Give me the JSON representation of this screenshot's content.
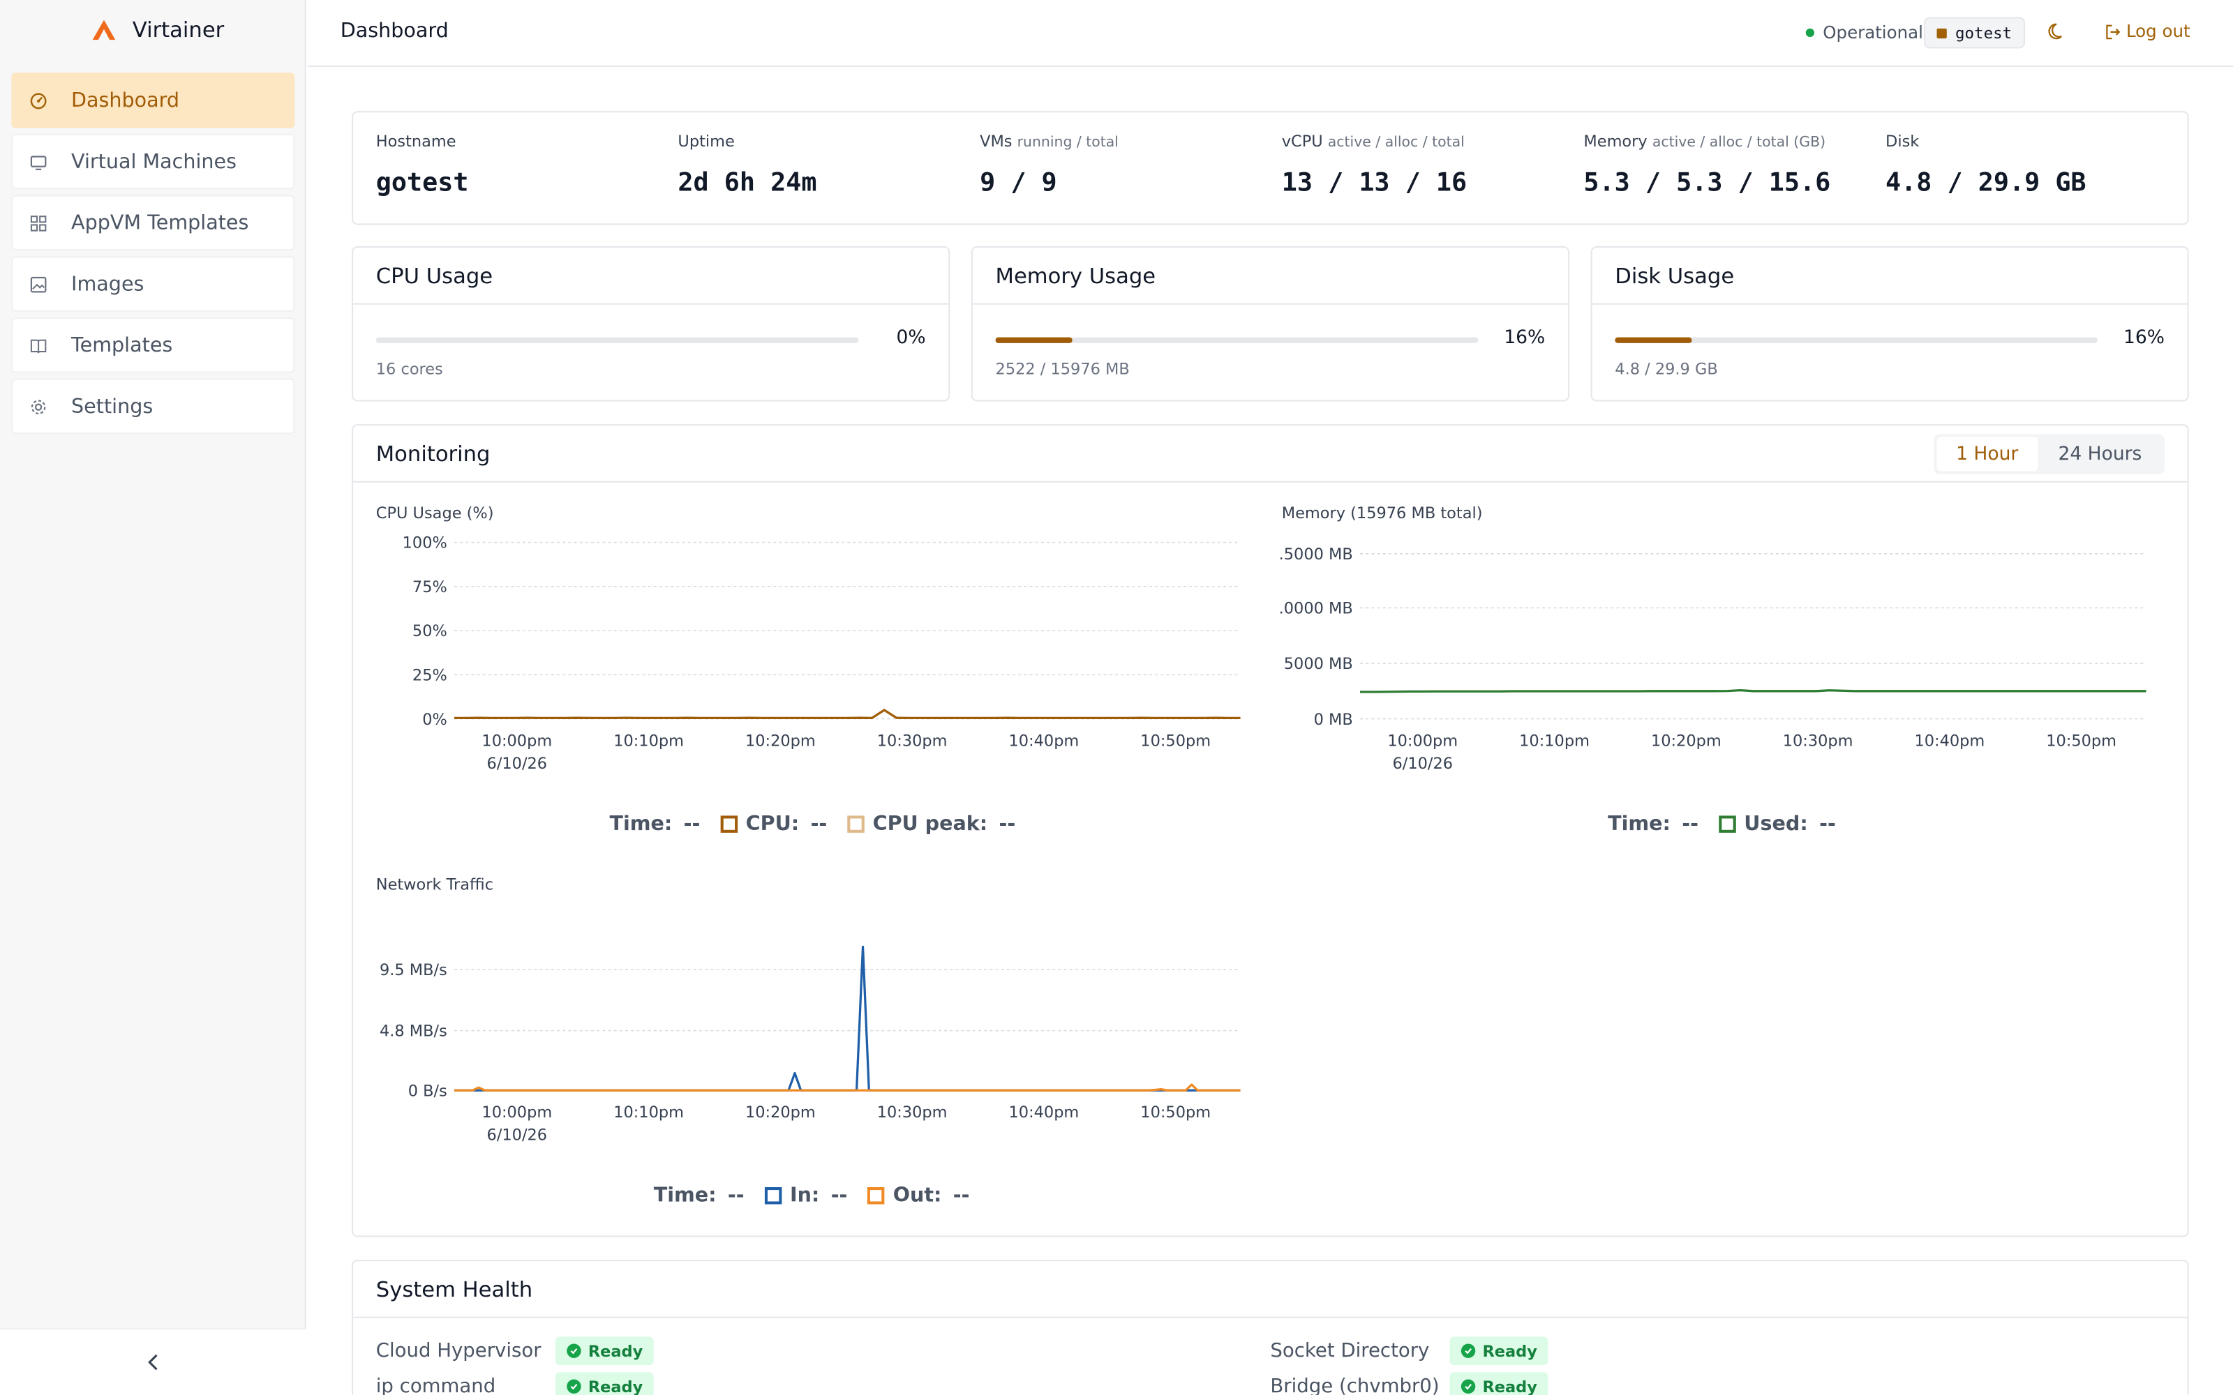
{
  "app": {
    "name": "Virtainer",
    "accent": "#a15c07"
  },
  "sidebar": {
    "items": [
      {
        "label": "Dashboard",
        "icon": "dashboard-icon",
        "active": true
      },
      {
        "label": "Virtual Machines",
        "icon": "monitor-icon",
        "active": false
      },
      {
        "label": "AppVM Templates",
        "icon": "grid-icon",
        "active": false
      },
      {
        "label": "Images",
        "icon": "image-icon",
        "active": false
      },
      {
        "label": "Templates",
        "icon": "book-icon",
        "active": false
      },
      {
        "label": "Settings",
        "icon": "gear-icon",
        "active": false
      }
    ]
  },
  "header": {
    "title": "Dashboard",
    "status": "Operational",
    "host": "gotest",
    "logout": "Log out"
  },
  "stats": [
    {
      "label": "Hostname",
      "sub": "",
      "value": "gotest"
    },
    {
      "label": "Uptime",
      "sub": "",
      "value": "2d 6h 24m"
    },
    {
      "label": "VMs",
      "sub": "running / total",
      "value": "9 / 9"
    },
    {
      "label": "vCPU",
      "sub": "active / alloc / total",
      "value": "13 / 13 / 16"
    },
    {
      "label": "Memory",
      "sub": "active / alloc / total (GB)",
      "value": "5.3 / 5.3 / 15.6"
    },
    {
      "label": "Disk",
      "sub": "",
      "value": "4.8 / 29.9 GB"
    }
  ],
  "usage": [
    {
      "title": "CPU Usage",
      "percent": "0%",
      "fraction": 0.0,
      "detail": "16 cores"
    },
    {
      "title": "Memory Usage",
      "percent": "16%",
      "fraction": 0.16,
      "detail": "2522 / 15976 MB"
    },
    {
      "title": "Disk Usage",
      "percent": "16%",
      "fraction": 0.16,
      "detail": "4.8 / 29.9 GB"
    }
  ],
  "monitoring": {
    "title": "Monitoring",
    "ranges": [
      "1 Hour",
      "24 Hours"
    ],
    "active_range": "1 Hour"
  },
  "chart_data": [
    {
      "type": "line",
      "title": "CPU Usage (%)",
      "yticks": [
        "100%",
        "75%",
        "50%",
        "25%",
        "0%"
      ],
      "ylim": [
        0,
        100
      ],
      "xticks": [
        "10:00pm",
        "10:10pm",
        "10:20pm",
        "10:30pm",
        "10:40pm",
        "10:50pm"
      ],
      "xdate": "6/10/26",
      "grid": true,
      "series": [
        {
          "name": "CPU",
          "color": "#a15c07",
          "values": [
            0.5,
            0.5,
            0.6,
            0.5,
            0.5,
            0.5,
            0.6,
            0.5,
            0.5,
            0.5,
            0.6,
            0.5,
            0.5,
            0.5,
            0.6,
            0.5,
            0.5,
            0.5,
            0.5,
            0.6,
            0.5,
            0.5,
            0.5,
            0.5,
            0.6,
            0.5,
            0.5,
            0.5,
            0.5,
            0.5,
            0.5,
            0.5,
            0.5,
            0.6,
            0.5,
            5,
            0.6,
            0.5,
            0.5,
            0.5,
            0.5,
            0.5,
            0.5,
            0.5,
            0.5,
            0.6,
            0.5,
            0.5,
            0.5,
            0.5,
            0.5,
            0.5,
            0.5,
            0.5,
            0.5,
            0.5,
            0.6,
            0.5,
            0.5,
            0.5,
            0.5,
            0.5,
            0.6,
            0.5,
            0.5
          ]
        },
        {
          "name": "CPU peak",
          "color": "#e0b98a",
          "values": []
        }
      ],
      "legend": [
        {
          "label": "Time:",
          "value": "--"
        },
        {
          "label": "CPU:",
          "value": "--",
          "color": "#a15c07"
        },
        {
          "label": "CPU peak:",
          "value": "--",
          "color": "#e0b98a"
        }
      ]
    },
    {
      "type": "line",
      "title": "Memory (15976 MB total)",
      "yticks": [
        ".5000 MB",
        ".0000 MB",
        "5000 MB",
        "0 MB"
      ],
      "ylim": [
        0,
        15000
      ],
      "xticks": [
        "10:00pm",
        "10:10pm",
        "10:20pm",
        "10:30pm",
        "10:40pm",
        "10:50pm"
      ],
      "xdate": "6/10/26",
      "grid": true,
      "series": [
        {
          "name": "Used",
          "color": "#2e7d32",
          "values": [
            2450,
            2450,
            2460,
            2470,
            2480,
            2480,
            2490,
            2490,
            2500,
            2500,
            2500,
            2500,
            2510,
            2510,
            2510,
            2510,
            2510,
            2510,
            2510,
            2510,
            2510,
            2510,
            2510,
            2520,
            2520,
            2520,
            2520,
            2520,
            2520,
            2530,
            2600,
            2520,
            2520,
            2520,
            2520,
            2520,
            2520,
            2590,
            2560,
            2520,
            2520,
            2520,
            2520,
            2520,
            2520,
            2520,
            2520,
            2520,
            2520,
            2520,
            2520,
            2520,
            2520,
            2520,
            2520,
            2520,
            2520,
            2520,
            2520,
            2520,
            2520,
            2520,
            2520
          ]
        }
      ],
      "legend": [
        {
          "label": "Time:",
          "value": "--"
        },
        {
          "label": "Used:",
          "value": "--",
          "color": "#2e7d32"
        }
      ]
    },
    {
      "type": "line",
      "title": "Network Traffic",
      "yticks": [
        "9.5 MB/s",
        "4.8 MB/s",
        "0 B/s"
      ],
      "ylim": [
        0,
        14
      ],
      "xticks": [
        "10:00pm",
        "10:10pm",
        "10:20pm",
        "10:30pm",
        "10:40pm",
        "10:50pm"
      ],
      "xdate": "6/10/26",
      "grid": true,
      "series": [
        {
          "name": "In",
          "color": "#1f5fa8",
          "values": [
            0,
            0,
            0,
            0,
            0,
            0,
            0,
            0,
            0,
            0,
            0,
            0,
            0,
            0,
            0,
            0,
            0,
            0,
            0,
            0,
            0,
            0,
            0,
            0,
            0,
            0,
            0,
            0,
            0,
            0,
            0,
            0,
            0,
            0,
            0,
            0,
            0,
            0,
            0,
            0,
            0,
            0,
            0,
            0,
            0,
            0,
            0,
            0,
            0,
            0,
            0,
            0,
            0,
            0,
            0,
            1.5,
            0,
            0,
            0,
            0,
            0,
            0,
            0,
            0,
            0,
            0,
            12.5,
            0,
            0,
            0,
            0,
            0,
            0,
            0,
            0,
            0,
            0,
            0,
            0,
            0,
            0,
            0,
            0,
            0,
            0,
            0,
            0,
            0,
            0,
            0,
            0,
            0,
            0,
            0,
            0,
            0,
            0,
            0,
            0,
            0,
            0,
            0,
            0,
            0,
            0,
            0,
            0,
            0,
            0,
            0,
            0,
            0,
            0,
            0,
            0,
            0,
            0,
            0,
            0,
            0,
            0,
            0,
            0,
            0,
            0,
            0,
            0,
            0
          ]
        },
        {
          "name": "Out",
          "color": "#f08a24",
          "values": [
            0,
            0,
            0,
            0,
            0.25,
            0,
            0,
            0,
            0,
            0,
            0,
            0,
            0,
            0,
            0,
            0,
            0,
            0,
            0,
            0,
            0,
            0,
            0,
            0,
            0,
            0,
            0,
            0,
            0,
            0,
            0,
            0,
            0,
            0,
            0,
            0,
            0,
            0,
            0,
            0,
            0,
            0,
            0,
            0,
            0,
            0,
            0,
            0,
            0,
            0,
            0,
            0,
            0,
            0,
            0,
            0,
            0,
            0,
            0,
            0,
            0,
            0,
            0,
            0,
            0,
            0,
            0,
            0,
            0,
            0,
            0,
            0,
            0,
            0,
            0,
            0,
            0,
            0,
            0,
            0,
            0,
            0,
            0,
            0,
            0,
            0,
            0,
            0,
            0,
            0,
            0,
            0,
            0,
            0,
            0,
            0,
            0,
            0,
            0,
            0,
            0,
            0,
            0,
            0,
            0,
            0,
            0,
            0,
            0,
            0,
            0,
            0,
            0,
            0,
            0,
            0.05,
            0.1,
            0,
            0,
            0,
            0,
            0.5,
            0,
            0,
            0,
            0,
            0,
            0,
            0,
            0
          ]
        }
      ],
      "legend": [
        {
          "label": "Time:",
          "value": "--"
        },
        {
          "label": "In:",
          "value": "--",
          "color": "#1f5fa8"
        },
        {
          "label": "Out:",
          "value": "--",
          "color": "#f08a24"
        }
      ]
    }
  ],
  "health": {
    "title": "System Health",
    "items": [
      {
        "name": "Cloud Hypervisor",
        "status": "Ready"
      },
      {
        "name": "ip command",
        "status": "Ready"
      },
      {
        "name": "Socket Directory",
        "status": "Ready"
      },
      {
        "name": "Bridge (chvmbr0)",
        "status": "Ready"
      }
    ]
  }
}
